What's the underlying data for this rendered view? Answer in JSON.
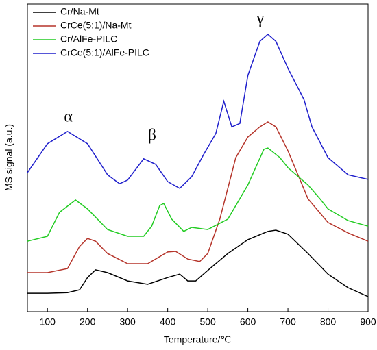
{
  "chart_data": {
    "type": "line",
    "xlabel": "Temperature/℃",
    "ylabel": "MS signal (a.u.)",
    "xlim": [
      50,
      900
    ],
    "ylim": [
      0,
      100
    ],
    "xticks": [
      100,
      200,
      300,
      400,
      500,
      600,
      700,
      800,
      900
    ],
    "legend": "upper left",
    "annotations": [
      {
        "text": "α",
        "x": 152,
        "y": 63
      },
      {
        "text": "β",
        "x": 361,
        "y": 57
      },
      {
        "text": "γ",
        "x": 631,
        "y": 95
      }
    ],
    "series": [
      {
        "name": "Cr/Na-Mt",
        "color": "#000000",
        "x": [
          50,
          100,
          150,
          180,
          200,
          220,
          250,
          300,
          350,
          400,
          430,
          450,
          470,
          500,
          550,
          600,
          650,
          670,
          700,
          750,
          800,
          850,
          900
        ],
        "values": [
          6.0,
          6.0,
          6.2,
          7.1,
          11.1,
          13.6,
          12.7,
          10.0,
          8.9,
          11.1,
          12.2,
          10.0,
          10.0,
          13.4,
          18.9,
          23.4,
          26.1,
          26.5,
          25.2,
          18.9,
          12.2,
          7.8,
          4.9
        ]
      },
      {
        "name": "CrCe(5:1)/Na-Mt",
        "color": "#b5342a",
        "x": [
          50,
          100,
          150,
          180,
          200,
          220,
          250,
          300,
          350,
          400,
          420,
          450,
          480,
          500,
          530,
          570,
          600,
          630,
          650,
          670,
          700,
          750,
          800,
          850,
          900
        ],
        "values": [
          12.7,
          12.7,
          14.0,
          21.2,
          23.8,
          22.9,
          18.9,
          15.6,
          15.6,
          19.4,
          19.6,
          17.1,
          16.3,
          18.9,
          30.1,
          50.1,
          56.8,
          60.1,
          61.7,
          60.1,
          52.3,
          36.7,
          29.0,
          25.6,
          22.9
        ]
      },
      {
        "name": "Cr/AlFe-PILC",
        "color": "#22cc22",
        "x": [
          50,
          100,
          130,
          170,
          200,
          250,
          300,
          340,
          360,
          380,
          390,
          410,
          440,
          460,
          500,
          550,
          600,
          640,
          650,
          680,
          700,
          750,
          780,
          800,
          850,
          900
        ],
        "values": [
          22.9,
          24.5,
          32.3,
          36.3,
          33.4,
          26.7,
          24.5,
          24.5,
          27.8,
          34.5,
          35.2,
          30.1,
          26.1,
          27.4,
          26.7,
          30.1,
          41.2,
          52.8,
          53.2,
          50.1,
          46.8,
          41.2,
          36.7,
          33.4,
          29.6,
          27.8
        ]
      },
      {
        "name": "CrCe(5:1)/AlFe-PILC",
        "color": "#1f1fcc",
        "x": [
          50,
          100,
          150,
          200,
          250,
          280,
          300,
          340,
          370,
          400,
          430,
          460,
          490,
          520,
          540,
          560,
          580,
          600,
          630,
          650,
          670,
          700,
          740,
          760,
          800,
          850,
          900
        ],
        "values": [
          45.2,
          54.6,
          58.6,
          54.6,
          44.5,
          41.6,
          42.8,
          49.7,
          47.9,
          42.3,
          40.1,
          43.9,
          51.2,
          57.9,
          68.4,
          60.1,
          61.2,
          76.8,
          87.9,
          90.2,
          87.9,
          79.1,
          69.0,
          60.1,
          50.1,
          44.5,
          43.0
        ]
      }
    ]
  }
}
